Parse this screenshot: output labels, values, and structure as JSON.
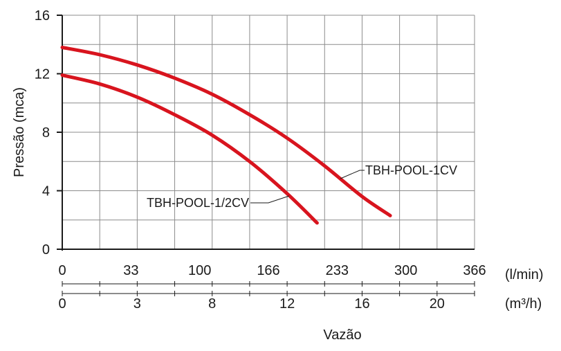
{
  "chart_data": {
    "type": "line",
    "ylabel": "Pressão (mca)",
    "xlabel": "Vazão",
    "ylim": [
      0,
      16
    ],
    "y_ticks": [
      "0",
      "4",
      "8",
      "12",
      "16"
    ],
    "x_axis_primary": {
      "unit": "(l/min)",
      "range": [
        0,
        366
      ],
      "ticks": [
        "0",
        "33",
        "100",
        "166",
        "233",
        "300",
        "366"
      ]
    },
    "x_axis_secondary": {
      "unit": "(m³/h)",
      "range": [
        0,
        22
      ],
      "ticks": [
        "0",
        "3",
        "8",
        "12",
        "16",
        "20"
      ]
    },
    "grid": true,
    "series": [
      {
        "name": "TBH-POOL-1CV",
        "x_unit": "m³/h",
        "color": "#d8141e",
        "x": [
          0,
          2,
          4,
          6,
          8,
          10,
          12,
          14,
          16,
          17.5
        ],
        "y": [
          13.8,
          13.3,
          12.6,
          11.7,
          10.6,
          9.2,
          7.6,
          5.7,
          3.6,
          2.3
        ]
      },
      {
        "name": "TBH-POOL-1/2CV",
        "x_unit": "m³/h",
        "color": "#d8141e",
        "x": [
          0,
          2,
          4,
          6,
          8,
          10,
          12,
          13.6
        ],
        "y": [
          11.9,
          11.3,
          10.4,
          9.2,
          7.8,
          6.0,
          3.8,
          1.8
        ]
      }
    ]
  }
}
